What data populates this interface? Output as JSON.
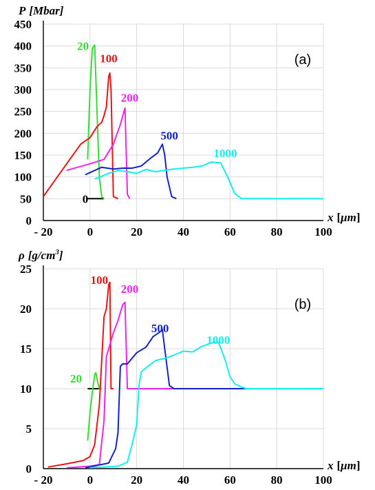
{
  "chart_data": [
    {
      "type": "line",
      "panel_label": "(a)",
      "ylabel_symbol": "P",
      "ylabel_unit": "[Mbar]",
      "xlabel_symbol": "x",
      "xlabel_unit_open": "[",
      "xlabel_unit_greek": "μm",
      "xlabel_unit_close": "]",
      "xlim": [
        -20,
        100
      ],
      "ylim": [
        0,
        450
      ],
      "grid": true,
      "xticks": [
        -20,
        0,
        20,
        40,
        60,
        80,
        100
      ],
      "xtick_labels": [
        "- 20",
        "0",
        "20",
        "40",
        "60",
        "80",
        "100"
      ],
      "yticks": [
        0,
        50,
        100,
        150,
        200,
        250,
        300,
        350,
        400,
        450
      ],
      "ytick_labels": [
        "0",
        "50",
        "100",
        "150",
        "200",
        "250",
        "300",
        "350",
        "400",
        "450"
      ],
      "series": [
        {
          "name": "0",
          "color": "#000000",
          "label_x": -2,
          "label_y": 50,
          "x": [
            -1,
            6
          ],
          "y": [
            50,
            50
          ]
        },
        {
          "name": "20",
          "color": "#33dd33",
          "label_x": -3,
          "label_y": 400,
          "x": [
            -1,
            0,
            1,
            2,
            3,
            4,
            5,
            6
          ],
          "y": [
            140,
            300,
            395,
            402,
            250,
            100,
            55,
            50
          ]
        },
        {
          "name": "100",
          "color": "#ee1111",
          "label_x": 8,
          "label_y": 372,
          "x": [
            -20,
            -10,
            -4,
            0,
            3,
            5,
            6,
            7,
            8,
            8.5,
            9,
            10,
            12
          ],
          "y": [
            55,
            130,
            175,
            190,
            215,
            225,
            240,
            260,
            330,
            338,
            300,
            55,
            50
          ]
        },
        {
          "name": "200",
          "color": "#ee22ee",
          "label_x": 17,
          "label_y": 282,
          "x": [
            -10,
            0,
            6,
            10,
            13,
            15,
            16,
            17
          ],
          "y": [
            115,
            130,
            140,
            175,
            220,
            258,
            60,
            50
          ]
        },
        {
          "name": "500",
          "color": "#1122cc",
          "label_x": 34,
          "label_y": 195,
          "x": [
            -2,
            5,
            10,
            14,
            18,
            22,
            26,
            29,
            31,
            32,
            33,
            35,
            37
          ],
          "y": [
            105,
            122,
            118,
            120,
            120,
            125,
            143,
            155,
            175,
            150,
            100,
            55,
            50
          ]
        },
        {
          "name": "1000",
          "color": "#11eeee",
          "label_x": 58,
          "label_y": 155,
          "x": [
            2,
            8,
            12,
            16,
            20,
            24,
            28,
            32,
            36,
            40,
            44,
            48,
            52,
            56,
            59,
            62,
            65,
            100
          ],
          "y": [
            95,
            108,
            115,
            112,
            108,
            117,
            112,
            115,
            118,
            120,
            122,
            125,
            134,
            132,
            100,
            62,
            50,
            50
          ]
        }
      ]
    },
    {
      "type": "line",
      "panel_label": "(b)",
      "ylabel_symbol": "ρ",
      "ylabel_unit": "[g/cm",
      "ylabel_unit_sup": "3",
      "ylabel_unit_close": "]",
      "xlabel_symbol": "x",
      "xlabel_unit_open": "[",
      "xlabel_unit_greek": "μm",
      "xlabel_unit_close": "]",
      "xlim": [
        -20,
        100
      ],
      "ylim": [
        0,
        25
      ],
      "grid": true,
      "xticks": [
        -20,
        0,
        20,
        40,
        60,
        80,
        100
      ],
      "xtick_labels": [
        "- 20",
        "0",
        "20",
        "40",
        "60",
        "80",
        "100"
      ],
      "yticks": [
        0,
        5,
        10,
        15,
        20,
        25
      ],
      "ytick_labels": [
        "0",
        "5",
        "10",
        "15",
        "20",
        "25"
      ],
      "series": [
        {
          "name": "",
          "color": "#000000",
          "label_x": null,
          "label_y": null,
          "x": [
            -1,
            4
          ],
          "y": [
            10,
            10
          ]
        },
        {
          "name": "20",
          "color": "#33dd33",
          "label_x": -6,
          "label_y": 11.3,
          "x": [
            -1,
            0,
            1,
            2,
            2.5,
            3,
            4,
            5
          ],
          "y": [
            3.5,
            7,
            9.5,
            11.8,
            12,
            11.2,
            10,
            10
          ]
        },
        {
          "name": "100",
          "color": "#ee1111",
          "label_x": 4,
          "label_y": 23.6,
          "x": [
            -18,
            -10,
            -3,
            0,
            2,
            4,
            6,
            7,
            8,
            8.5,
            9,
            10
          ],
          "y": [
            0.2,
            0.6,
            1.0,
            1.5,
            3,
            8,
            19,
            20,
            23,
            23.3,
            10,
            10
          ]
        },
        {
          "name": "200",
          "color": "#ee22ee",
          "label_x": 17,
          "label_y": 22.5,
          "x": [
            -10,
            0,
            4,
            6,
            7,
            8,
            10,
            12,
            14,
            15,
            16,
            20,
            30,
            60
          ],
          "y": [
            0.1,
            0.3,
            0.5,
            6,
            14,
            15,
            17,
            18.5,
            20.5,
            20.8,
            10,
            10,
            10,
            10
          ]
        },
        {
          "name": "500",
          "color": "#1122cc",
          "label_x": 30,
          "label_y": 17.6,
          "x": [
            -2,
            8,
            11,
            12,
            13,
            14,
            16,
            20,
            24,
            27,
            30,
            31,
            32,
            34,
            36,
            60,
            67
          ],
          "y": [
            0.1,
            0.7,
            2.5,
            4.5,
            12.8,
            13.1,
            13.1,
            14.5,
            15.2,
            16.5,
            17.1,
            17.4,
            15,
            10.4,
            10,
            10,
            10
          ]
        },
        {
          "name": "1000",
          "color": "#11eeee",
          "label_x": 55,
          "label_y": 16.1,
          "x": [
            0,
            12,
            16,
            18,
            20,
            21,
            22,
            24,
            28,
            32,
            36,
            40,
            44,
            48,
            50,
            53,
            55,
            56,
            58,
            60,
            62,
            65,
            67,
            100
          ],
          "y": [
            0.1,
            0.3,
            0.8,
            3.0,
            5.5,
            10.5,
            12.1,
            12.6,
            13.5,
            13.8,
            14.2,
            14.7,
            14.6,
            15.3,
            15.5,
            15.8,
            15.8,
            15.1,
            13.5,
            11.5,
            10.6,
            10.2,
            10,
            10
          ]
        }
      ]
    }
  ]
}
